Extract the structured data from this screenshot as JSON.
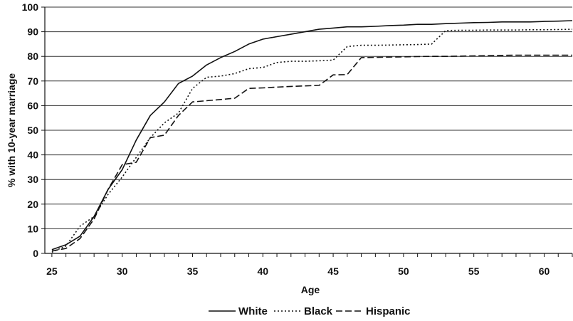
{
  "chart_data": {
    "type": "line",
    "title": "",
    "xlabel": "Age",
    "ylabel": "% with 10-year marriage",
    "xlim": [
      24.5,
      62
    ],
    "ylim": [
      0,
      100
    ],
    "x_ticks": [
      25,
      30,
      35,
      40,
      45,
      50,
      55,
      60
    ],
    "y_ticks": [
      0,
      10,
      20,
      30,
      40,
      50,
      60,
      70,
      80,
      90,
      100
    ],
    "grid": "horizontal",
    "legend_position": "bottom",
    "series": [
      {
        "name": "White",
        "style": "solid",
        "color": "#111111",
        "x": [
          25,
          26,
          27,
          28,
          29,
          30,
          31,
          32,
          33,
          34,
          35,
          36,
          37,
          38,
          39,
          40,
          41,
          42,
          43,
          44,
          45,
          46,
          47,
          48,
          49,
          50,
          51,
          52,
          53,
          54,
          55,
          56,
          57,
          58,
          59,
          60,
          61,
          62
        ],
        "y": [
          1.5,
          3.5,
          7,
          15,
          26,
          34,
          46,
          56,
          61.5,
          69,
          72,
          76.5,
          79.5,
          82,
          85,
          87,
          88,
          89,
          90,
          91,
          91.5,
          92,
          92,
          92.2,
          92.5,
          92.7,
          93,
          93,
          93.3,
          93.5,
          93.7,
          93.8,
          94,
          94,
          94,
          94.2,
          94.3,
          94.5
        ]
      },
      {
        "name": "Black",
        "style": "dotted",
        "color": "#111111",
        "x": [
          25,
          26,
          27,
          28,
          29,
          30,
          31,
          32,
          33,
          34,
          35,
          36,
          37,
          38,
          39,
          40,
          41,
          42,
          43,
          44,
          45,
          46,
          47,
          48,
          49,
          50,
          51,
          52,
          53,
          54,
          55,
          56,
          57,
          58,
          59,
          60,
          61,
          62
        ],
        "y": [
          0.5,
          3,
          11,
          15,
          24,
          31,
          39,
          47,
          53,
          57,
          67,
          71.5,
          72,
          73,
          75,
          75.5,
          77.5,
          78,
          78,
          78.2,
          78.5,
          84,
          84.5,
          84.5,
          84.6,
          84.7,
          84.8,
          85,
          90.5,
          90.6,
          90.6,
          90.7,
          90.7,
          90.7,
          90.8,
          90.8,
          90.9,
          91
        ]
      },
      {
        "name": "Hispanic",
        "style": "dashed",
        "color": "#111111",
        "x": [
          25,
          26,
          27,
          28,
          29,
          30,
          31,
          32,
          33,
          34,
          35,
          36,
          37,
          38,
          39,
          40,
          41,
          42,
          43,
          44,
          45,
          46,
          47,
          48,
          49,
          50,
          51,
          52,
          53,
          54,
          55,
          56,
          57,
          58,
          59,
          60,
          61,
          62
        ],
        "y": [
          1,
          2,
          6,
          14,
          26,
          36,
          37,
          47,
          48,
          56,
          61.5,
          62,
          62.5,
          63,
          67,
          67.2,
          67.5,
          67.8,
          68,
          68.2,
          72.5,
          72.6,
          79.5,
          79.6,
          79.7,
          79.8,
          79.9,
          80,
          80,
          80.1,
          80.2,
          80.3,
          80.4,
          80.5,
          80.5,
          80.5,
          80.5,
          80.5
        ]
      }
    ]
  }
}
